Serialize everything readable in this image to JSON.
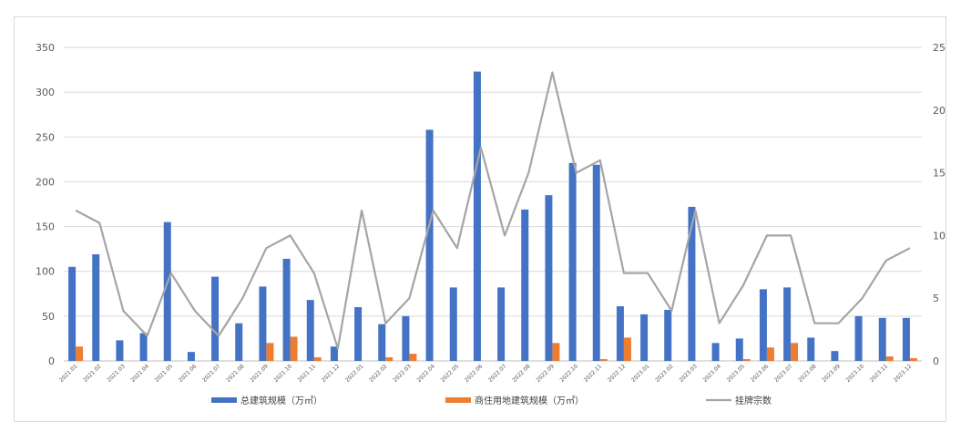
{
  "chart_data": {
    "type": "bar",
    "title": "",
    "xlabel": "",
    "ylabel": "",
    "ylim": [
      0,
      350
    ],
    "y2lim": [
      0,
      25
    ],
    "y_ticks": [
      "0",
      "50",
      "100",
      "150",
      "200",
      "250",
      "300",
      "350"
    ],
    "y2_ticks": [
      "0",
      "5",
      "10",
      "15",
      "20",
      "25"
    ],
    "grid": true,
    "legend_position": "bottom",
    "categories": [
      "2021.01",
      "2021.02",
      "2021.03",
      "2021.04",
      "2021.05",
      "2021.06",
      "2021.07",
      "2021.08",
      "2021.09",
      "2021.10",
      "2021.11",
      "2021.12",
      "2022.01",
      "2022.02",
      "2022.03",
      "2022.04",
      "2022.05",
      "2022.06",
      "2022.07",
      "2022.08",
      "2022.09",
      "2022.10",
      "2022.11",
      "2022.12",
      "2023.01",
      "2023.02",
      "2023.03",
      "2023.04",
      "2023.05",
      "2023.06",
      "2023.07",
      "2023.08",
      "2023.09",
      "2023.10",
      "2023.11",
      "2023.12"
    ],
    "series": [
      {
        "name": "总建筑规模（万㎡）",
        "type": "bar",
        "axis": "left",
        "color": "#4472C4",
        "values": [
          105,
          119,
          23,
          31,
          155,
          10,
          94,
          42,
          83,
          114,
          68,
          16,
          60,
          41,
          50,
          258,
          82,
          323,
          82,
          169,
          185,
          221,
          219,
          61,
          52,
          57,
          172,
          20,
          25,
          80,
          82,
          26,
          11,
          50,
          48,
          48
        ]
      },
      {
        "name": "商住用地建筑规模（万㎡）",
        "type": "bar",
        "axis": "left",
        "color": "#ED7D31",
        "values": [
          16,
          0,
          0,
          0,
          0,
          0,
          0,
          0,
          20,
          27,
          4,
          0,
          0,
          4,
          8,
          0,
          0,
          0,
          0,
          0,
          20,
          0,
          2,
          26,
          0,
          0,
          0,
          0,
          2,
          15,
          20,
          0,
          0,
          0,
          5,
          3
        ]
      },
      {
        "name": "挂牌宗数",
        "type": "line",
        "axis": "right",
        "color": "#A5A5A5",
        "values": [
          12,
          11,
          4,
          2,
          7,
          4,
          2,
          5,
          9,
          10,
          7,
          1,
          12,
          3,
          5,
          12,
          9,
          17,
          10,
          15,
          23,
          15,
          16,
          7,
          7,
          4,
          12,
          3,
          6,
          10,
          10,
          3,
          3,
          5,
          8,
          9
        ]
      }
    ]
  }
}
